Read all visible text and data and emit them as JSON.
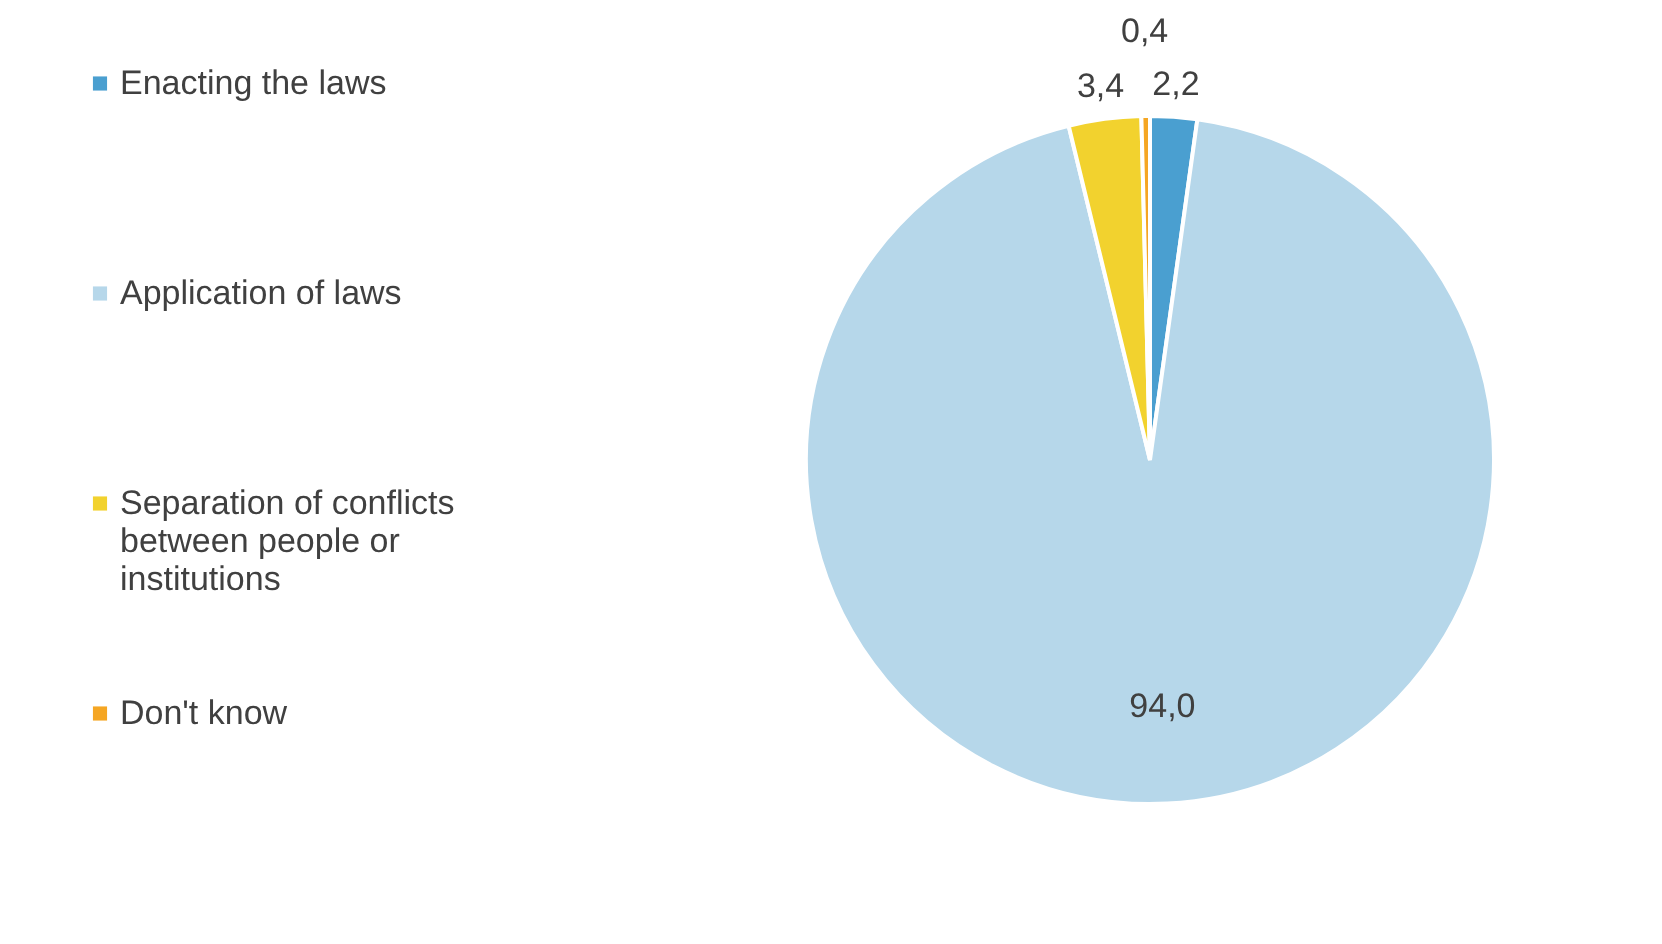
{
  "chart_data": {
    "type": "pie",
    "categories": [
      "Enacting the laws",
      "Application of laws",
      "Separation of conflicts between people or institutions",
      "Don't know"
    ],
    "values": [
      2.2,
      94.0,
      3.4,
      0.4
    ],
    "colors": [
      "#4a9fd0",
      "#b6d7ea",
      "#f2d22e",
      "#f5a623"
    ],
    "value_labels": [
      "2,2",
      "94,0",
      "3,4",
      "0,4"
    ],
    "legend": "left"
  }
}
